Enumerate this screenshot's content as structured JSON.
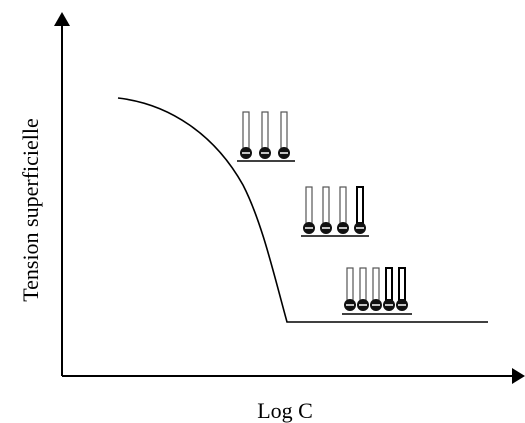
{
  "axes": {
    "y_label": "Tension superficielle",
    "x_label": "Log C"
  }
}
